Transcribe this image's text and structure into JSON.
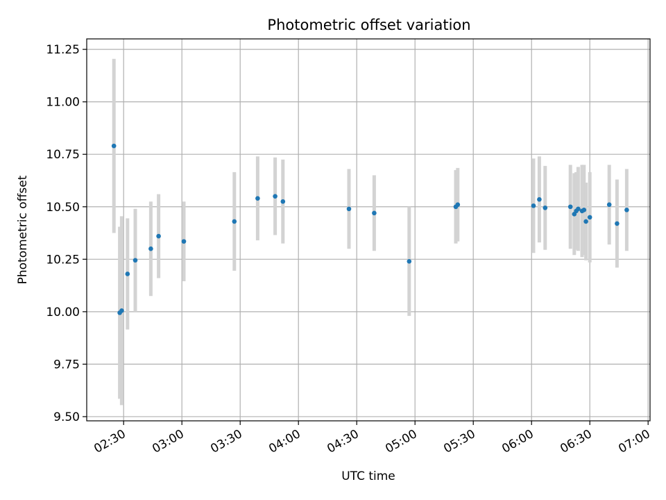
{
  "chart_data": {
    "type": "scatter",
    "title": "Photometric offset variation",
    "xlabel": "UTC time",
    "ylabel": "Photometric offset",
    "x_axis": "time",
    "xlim": [
      "02:11",
      "07:01"
    ],
    "ylim": [
      9.48,
      11.3
    ],
    "grid": true,
    "x_ticks": [
      "02:30",
      "03:00",
      "03:30",
      "04:00",
      "04:30",
      "05:00",
      "05:30",
      "06:00",
      "06:30",
      "07:00"
    ],
    "y_ticks": [
      "9.50",
      "9.75",
      "10.00",
      "10.25",
      "10.50",
      "10.75",
      "11.00",
      "11.25"
    ],
    "colors": {
      "points": "#1f77b4",
      "error_bars": "#d3d3d3",
      "grid": "#b0b0b0"
    },
    "points": [
      {
        "x": "02:25",
        "y": 10.79,
        "err": 0.415
      },
      {
        "x": "02:28",
        "y": 9.995,
        "err": 0.41
      },
      {
        "x": "02:29",
        "y": 10.005,
        "err": 0.45
      },
      {
        "x": "02:32",
        "y": 10.18,
        "err": 0.265
      },
      {
        "x": "02:36",
        "y": 10.245,
        "err": 0.245
      },
      {
        "x": "02:44",
        "y": 10.3,
        "err": 0.225
      },
      {
        "x": "02:48",
        "y": 10.36,
        "err": 0.2
      },
      {
        "x": "03:01",
        "y": 10.335,
        "err": 0.19
      },
      {
        "x": "03:27",
        "y": 10.43,
        "err": 0.235
      },
      {
        "x": "03:39",
        "y": 10.54,
        "err": 0.2
      },
      {
        "x": "03:48",
        "y": 10.55,
        "err": 0.185
      },
      {
        "x": "03:52",
        "y": 10.525,
        "err": 0.2
      },
      {
        "x": "04:26",
        "y": 10.49,
        "err": 0.19
      },
      {
        "x": "04:39",
        "y": 10.47,
        "err": 0.18
      },
      {
        "x": "04:57",
        "y": 10.24,
        "err": 0.26
      },
      {
        "x": "05:21",
        "y": 10.5,
        "err": 0.175
      },
      {
        "x": "05:22",
        "y": 10.51,
        "err": 0.175
      },
      {
        "x": "06:01",
        "y": 10.505,
        "err": 0.225
      },
      {
        "x": "06:04",
        "y": 10.535,
        "err": 0.205
      },
      {
        "x": "06:07",
        "y": 10.495,
        "err": 0.2
      },
      {
        "x": "06:20",
        "y": 10.5,
        "err": 0.2
      },
      {
        "x": "06:22",
        "y": 10.465,
        "err": 0.195
      },
      {
        "x": "06:23",
        "y": 10.48,
        "err": 0.185
      },
      {
        "x": "06:24",
        "y": 10.49,
        "err": 0.2
      },
      {
        "x": "06:26",
        "y": 10.48,
        "err": 0.22
      },
      {
        "x": "06:27",
        "y": 10.485,
        "err": 0.215
      },
      {
        "x": "06:28",
        "y": 10.43,
        "err": 0.185
      },
      {
        "x": "06:30",
        "y": 10.45,
        "err": 0.215
      },
      {
        "x": "06:40",
        "y": 10.51,
        "err": 0.19
      },
      {
        "x": "06:44",
        "y": 10.42,
        "err": 0.21
      },
      {
        "x": "06:49",
        "y": 10.485,
        "err": 0.195
      }
    ]
  }
}
